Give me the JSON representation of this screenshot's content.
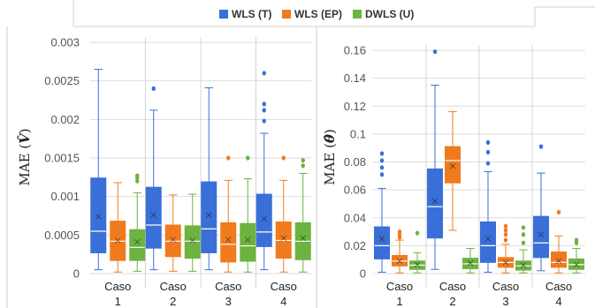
{
  "legend": {
    "items": [
      {
        "label": "WLS (T)",
        "color": "#3a6fd8"
      },
      {
        "label": "WLS (EP)",
        "color": "#f07b1e"
      },
      {
        "label": "DWLS (U)",
        "color": "#6cb33f"
      }
    ]
  },
  "chart_data": [
    {
      "type": "box",
      "ylabel_prefix": "MAE (",
      "ylabel_symbol": "V̂",
      "ylabel_suffix": ")",
      "ylim": [
        0,
        0.003
      ],
      "yticks": [
        "0",
        "0.0005",
        "0.001",
        "0.0015",
        "0.002",
        "0.0025",
        "0.003"
      ],
      "tick_values": [
        0,
        0.0005,
        0.001,
        0.0015,
        0.002,
        0.0025,
        0.003
      ],
      "categories": [
        {
          "line1": "Caso",
          "line2": "1"
        },
        {
          "line1": "Caso",
          "line2": "2"
        },
        {
          "line1": "Caso",
          "line2": "3"
        },
        {
          "line1": "Caso",
          "line2": "4"
        }
      ],
      "series": [
        {
          "name": "WLS (T)",
          "color": "#3a6fd8",
          "boxes": [
            {
              "min": 5e-05,
              "q1": 0.00027,
              "median": 0.00055,
              "mean": 0.00074,
              "q3": 0.00124,
              "max": 0.00265,
              "outliers": []
            },
            {
              "min": 5e-05,
              "q1": 0.00033,
              "median": 0.00063,
              "mean": 0.00076,
              "q3": 0.00112,
              "max": 0.00212,
              "outliers": [
                0.0024
              ]
            },
            {
              "min": 5e-05,
              "q1": 0.00027,
              "median": 0.00058,
              "mean": 0.00076,
              "q3": 0.00119,
              "max": 0.00241,
              "outliers": []
            },
            {
              "min": 5e-05,
              "q1": 0.00035,
              "median": 0.00054,
              "mean": 0.00071,
              "q3": 0.00103,
              "max": 0.00182,
              "outliers": [
                0.00198,
                0.00212,
                0.0022,
                0.0026
              ]
            }
          ]
        },
        {
          "name": "WLS (EP)",
          "color": "#f07b1e",
          "boxes": [
            {
              "min": 2e-05,
              "q1": 0.00017,
              "median": 0.00042,
              "mean": 0.00043,
              "q3": 0.00068,
              "max": 0.00118,
              "outliers": []
            },
            {
              "min": 3e-05,
              "q1": 0.00022,
              "median": 0.00042,
              "mean": 0.00044,
              "q3": 0.00063,
              "max": 0.00102,
              "outliers": []
            },
            {
              "min": 2e-05,
              "q1": 0.00015,
              "median": 0.00038,
              "mean": 0.00044,
              "q3": 0.00066,
              "max": 0.00121,
              "outliers": [
                0.0015
              ]
            },
            {
              "min": 2e-05,
              "q1": 0.0002,
              "median": 0.00043,
              "mean": 0.00046,
              "q3": 0.00067,
              "max": 0.00121,
              "outliers": [
                0.0015
              ]
            }
          ]
        },
        {
          "name": "DWLS (U)",
          "color": "#6cb33f",
          "boxes": [
            {
              "min": 3e-05,
              "q1": 0.00017,
              "median": 0.00034,
              "mean": 0.00041,
              "q3": 0.00057,
              "max": 0.00105,
              "outliers": [
                0.0012,
                0.00124,
                0.00127
              ]
            },
            {
              "min": 3e-05,
              "q1": 0.0002,
              "median": 0.00042,
              "mean": 0.00043,
              "q3": 0.00062,
              "max": 0.00103,
              "outliers": []
            },
            {
              "min": 2e-05,
              "q1": 0.00016,
              "median": 0.00036,
              "mean": 0.00044,
              "q3": 0.00065,
              "max": 0.00123,
              "outliers": [
                0.0015
              ]
            },
            {
              "min": 2e-05,
              "q1": 0.00018,
              "median": 0.00042,
              "mean": 0.00046,
              "q3": 0.00066,
              "max": 0.0013,
              "outliers": [
                0.0014,
                0.00147
              ]
            }
          ]
        }
      ]
    },
    {
      "type": "box",
      "ylabel_prefix": "MAE (",
      "ylabel_symbol": "θ̂",
      "ylabel_suffix": ")",
      "ylim": [
        0,
        0.16
      ],
      "yticks": [
        "0",
        "0.02",
        "0.04",
        "0.06",
        "0.08",
        "0.1",
        "0.12",
        "0.14",
        "0.16"
      ],
      "tick_values": [
        0,
        0.02,
        0.04,
        0.06,
        0.08,
        0.1,
        0.12,
        0.14,
        0.16
      ],
      "categories": [
        {
          "line1": "Caso",
          "line2": "1"
        },
        {
          "line1": "Caso",
          "line2": "2"
        },
        {
          "line1": "Caso",
          "line2": "3"
        },
        {
          "line1": "Caso",
          "line2": "4"
        }
      ],
      "series": [
        {
          "name": "WLS (T)",
          "color": "#3a6fd8",
          "boxes": [
            {
              "min": 0.001,
              "q1": 0.0105,
              "median": 0.02,
              "mean": 0.025,
              "q3": 0.0335,
              "max": 0.061,
              "outliers": [
                0.071,
                0.076,
                0.081,
                0.086
              ]
            },
            {
              "min": 0.003,
              "q1": 0.0255,
              "median": 0.048,
              "mean": 0.052,
              "q3": 0.075,
              "max": 0.135,
              "outliers": [
                0.159
              ]
            },
            {
              "min": 0.001,
              "q1": 0.008,
              "median": 0.02,
              "mean": 0.025,
              "q3": 0.037,
              "max": 0.073,
              "outliers": [
                0.079,
                0.087,
                0.094
              ]
            },
            {
              "min": 0.002,
              "q1": 0.0115,
              "median": 0.022,
              "mean": 0.028,
              "q3": 0.041,
              "max": 0.072,
              "outliers": [
                0.091
              ]
            }
          ]
        },
        {
          "name": "WLS (EP)",
          "color": "#f07b1e",
          "boxes": [
            {
              "min": 0.0005,
              "q1": 0.0055,
              "median": 0.009,
              "mean": 0.009,
              "q3": 0.013,
              "max": 0.024,
              "outliers": [
                0.026,
                0.028,
                0.03
              ]
            },
            {
              "min": 0.031,
              "q1": 0.065,
              "median": 0.081,
              "mean": 0.077,
              "q3": 0.091,
              "max": 0.116,
              "outliers": []
            },
            {
              "min": 0.0005,
              "q1": 0.0045,
              "median": 0.008,
              "mean": 0.008,
              "q3": 0.0115,
              "max": 0.021,
              "outliers": [
                0.024,
                0.028,
                0.031,
                0.034
              ]
            },
            {
              "min": 0.0005,
              "q1": 0.0045,
              "median": 0.008,
              "mean": 0.009,
              "q3": 0.0155,
              "max": 0.027,
              "outliers": [
                0.044
              ]
            }
          ]
        },
        {
          "name": "DWLS (U)",
          "color": "#6cb33f",
          "boxes": [
            {
              "min": 0.0005,
              "q1": 0.003,
              "median": 0.006,
              "mean": 0.0065,
              "q3": 0.009,
              "max": 0.015,
              "outliers": [
                0.029
              ]
            },
            {
              "min": 0.0005,
              "q1": 0.0035,
              "median": 0.007,
              "mean": 0.0075,
              "q3": 0.011,
              "max": 0.018,
              "outliers": []
            },
            {
              "min": 0.0005,
              "q1": 0.0025,
              "median": 0.0055,
              "mean": 0.006,
              "q3": 0.009,
              "max": 0.017,
              "outliers": [
                0.022,
                0.028,
                0.033
              ]
            },
            {
              "min": 0.0005,
              "q1": 0.003,
              "median": 0.0065,
              "mean": 0.0065,
              "q3": 0.0105,
              "max": 0.018,
              "outliers": [
                0.022,
                0.024
              ]
            }
          ]
        }
      ]
    }
  ]
}
